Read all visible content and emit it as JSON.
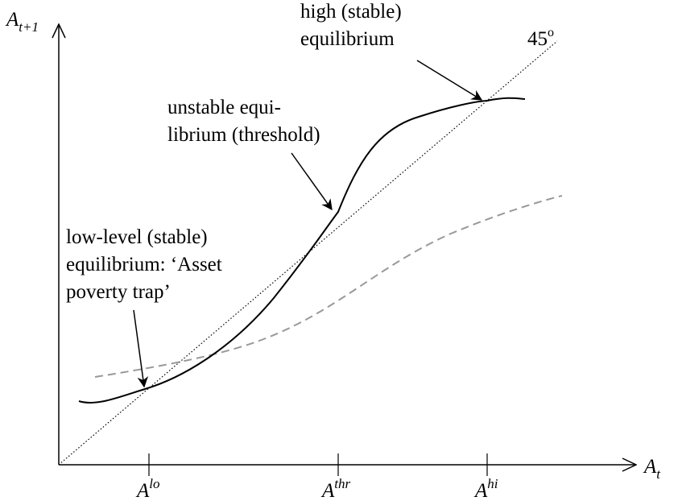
{
  "axes": {
    "y_label": {
      "base": "A",
      "sub": "t+1"
    },
    "x_label": {
      "base": "A",
      "sub": "t"
    },
    "ticks": [
      {
        "base": "A",
        "sup": "lo"
      },
      {
        "base": "A",
        "sup": "thr"
      },
      {
        "base": "A",
        "sup": "hi"
      }
    ]
  },
  "diagonal_label": {
    "base": "45",
    "sup": "o"
  },
  "annotations": [
    {
      "lines": [
        "high (stable)",
        "equilibrium"
      ]
    },
    {
      "lines": [
        "unstable equi-",
        "librium (threshold)"
      ]
    },
    {
      "lines": [
        "low-level (stable)",
        "equilibrium: ‘Asset",
        "poverty trap’"
      ]
    }
  ]
}
